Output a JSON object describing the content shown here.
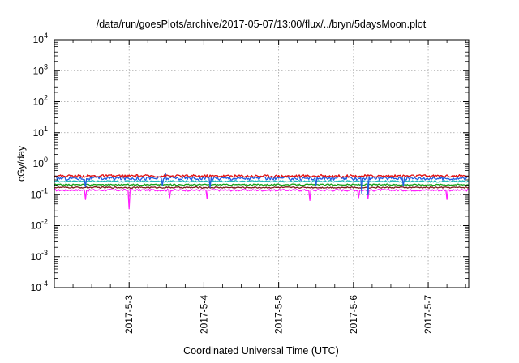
{
  "chart_data": {
    "type": "line",
    "title": "/data/run/goesPlots/archive/2017-05-07/13:00/flux/../bryn/5daysMoon.plot",
    "xlabel": "Coordinated Universal Time (UTC)",
    "ylabel": "cGy/day",
    "x_range": [
      "2017-05-02T00:00",
      "2017-05-07T13:00"
    ],
    "y_scale": "log",
    "ylim": [
      0.0001,
      10000
    ],
    "grid": true,
    "legend": "none",
    "x_ticks": [
      "2017-5-3",
      "2017-5-4",
      "2017-5-5",
      "2017-5-6",
      "2017-5-7"
    ],
    "x_tick_positions": [
      "2017-05-03",
      "2017-05-04",
      "2017-05-05",
      "2017-05-06",
      "2017-05-07"
    ],
    "y_ticks": [
      {
        "value": 0.0001,
        "base": "10",
        "exp": "-4"
      },
      {
        "value": 0.001,
        "base": "10",
        "exp": "-3"
      },
      {
        "value": 0.01,
        "base": "10",
        "exp": "-2"
      },
      {
        "value": 0.1,
        "base": "10",
        "exp": "-1"
      },
      {
        "value": 1,
        "base": "10",
        "exp": "0"
      },
      {
        "value": 10,
        "base": "10",
        "exp": "1"
      },
      {
        "value": 100,
        "base": "10",
        "exp": "2"
      },
      {
        "value": 1000,
        "base": "10",
        "exp": "3"
      },
      {
        "value": 10000,
        "base": "10",
        "exp": "4"
      }
    ],
    "series": [
      {
        "color": "#e01010",
        "level": 0.4,
        "noise": 0.1,
        "dips": []
      },
      {
        "color": "#1f5fe0",
        "level": 0.34,
        "noise": 0.14,
        "dips": [
          {
            "t": "2017-05-02T10:00",
            "v": 0.18
          },
          {
            "t": "2017-05-03T10:30",
            "v": 0.2
          },
          {
            "t": "2017-05-03T11:30",
            "v": 0.5
          },
          {
            "t": "2017-05-04T02:00",
            "v": 0.17
          },
          {
            "t": "2017-05-05T12:00",
            "v": 0.2
          },
          {
            "t": "2017-05-06T02:30",
            "v": 0.11
          },
          {
            "t": "2017-05-06T04:30",
            "v": 0.1
          },
          {
            "t": "2017-05-06T16:00",
            "v": 0.19
          }
        ]
      },
      {
        "color": "#20b8b8",
        "level": 0.27,
        "noise": 0.06,
        "dips": []
      },
      {
        "color": "#18a018",
        "level": 0.21,
        "noise": 0.05,
        "dips": []
      },
      {
        "color": "#7a1a1a",
        "level": 0.17,
        "noise": 0.05,
        "dips": []
      },
      {
        "color": "#ff20ff",
        "level": 0.14,
        "noise": 0.07,
        "dips": [
          {
            "t": "2017-05-02T10:00",
            "v": 0.07
          },
          {
            "t": "2017-05-03T00:00",
            "v": 0.035
          },
          {
            "t": "2017-05-03T13:00",
            "v": 0.08
          },
          {
            "t": "2017-05-04T01:00",
            "v": 0.075
          },
          {
            "t": "2017-05-05T10:00",
            "v": 0.065
          },
          {
            "t": "2017-05-06T01:30",
            "v": 0.08
          },
          {
            "t": "2017-05-06T04:30",
            "v": 0.075
          },
          {
            "t": "2017-05-07T06:00",
            "v": 0.07
          }
        ]
      }
    ]
  }
}
